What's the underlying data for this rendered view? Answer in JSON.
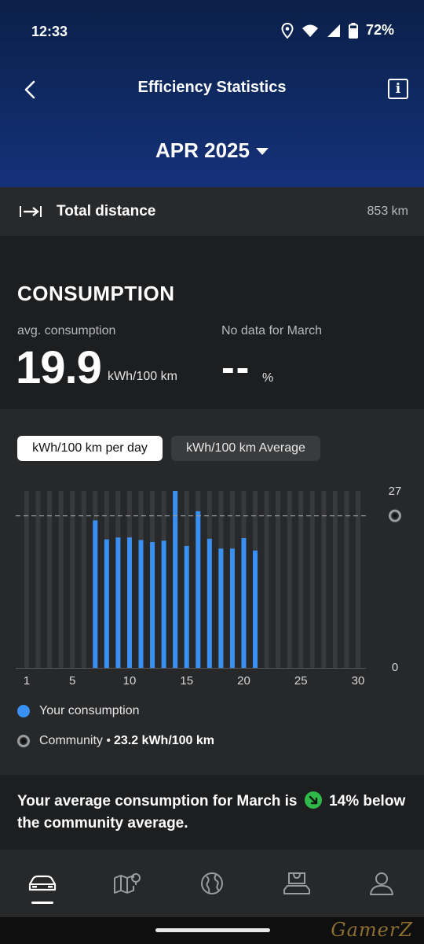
{
  "status_bar": {
    "time": "12:33",
    "battery": "72%"
  },
  "header": {
    "title": "Efficiency Statistics",
    "month": "APR 2025"
  },
  "distance": {
    "label": "Total distance",
    "value": "853 km"
  },
  "consumption": {
    "title": "CONSUMPTION",
    "avg_label": "avg. consumption",
    "avg_value": "19.9",
    "avg_unit": "kWh/100 km",
    "compare_label": "No data for March",
    "compare_value": "--",
    "compare_unit": "%"
  },
  "toggles": {
    "per_day": "kWh/100 km per day",
    "average": "kWh/100 km Average"
  },
  "chart_data": {
    "type": "bar",
    "x": [
      1,
      2,
      3,
      4,
      5,
      6,
      7,
      8,
      9,
      10,
      11,
      12,
      13,
      14,
      15,
      16,
      17,
      18,
      19,
      20,
      21,
      22,
      23,
      24,
      25,
      26,
      27,
      28,
      29,
      30
    ],
    "values": [
      null,
      null,
      null,
      null,
      null,
      null,
      22.5,
      19.6,
      19.9,
      19.9,
      19.5,
      19.2,
      19.4,
      27,
      18.6,
      23.9,
      19.7,
      18.2,
      18.2,
      19.8,
      17.9,
      null,
      null,
      null,
      null,
      null,
      null,
      null,
      null,
      null
    ],
    "x_tick_labels": [
      "1",
      "5",
      "10",
      "15",
      "20",
      "25",
      "30"
    ],
    "y_tick_labels": [
      "27",
      "0"
    ],
    "ylim": [
      0,
      27
    ],
    "reference_line": {
      "name": "Community",
      "value": 23.2
    },
    "grid": false,
    "colors": {
      "bar": "#3a8ff2",
      "track": "#38393b",
      "reference": "#9a9b9d"
    }
  },
  "legend": {
    "yours": "Your consumption",
    "community": "Community •",
    "community_value": "23.2 kWh/100 km"
  },
  "summary": {
    "text_before": "Your average consumption for March is",
    "text_after": "14% below the community average."
  },
  "nav": [
    "car-icon",
    "map-icon",
    "globe-icon",
    "store-icon",
    "profile-icon"
  ],
  "watermark": "GamerZ",
  "colors": {
    "accent": "#3a8ff2",
    "header_top": "#0b1f48",
    "header_bottom": "#16317a",
    "positive": "#2fb94a"
  }
}
